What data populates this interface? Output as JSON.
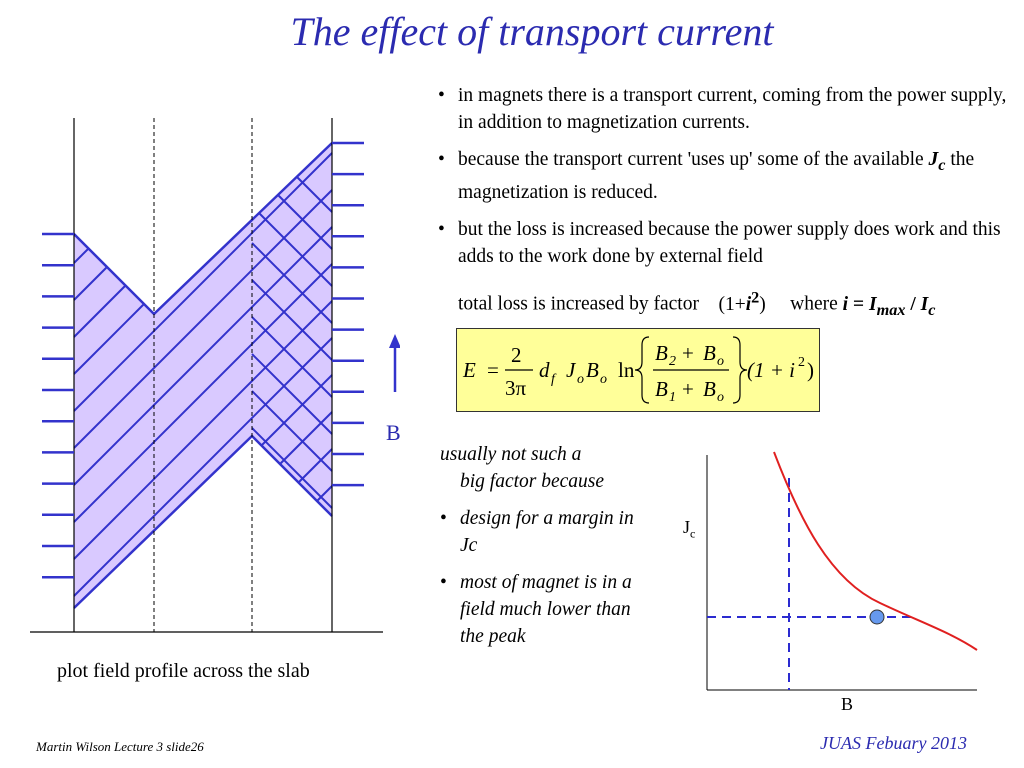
{
  "title": "The effect of transport current",
  "bullets": [
    "in magnets there is a transport current, coming from the power supply, in addition to magnetization currents.",
    {
      "pre": "because the transport current 'uses up' some of the available ",
      "sym": "J",
      "sub": "c",
      "post": " the magnetization is reduced."
    },
    "but the loss is increased because the power supply does work and this adds to the work done by external field"
  ],
  "loss_factor": {
    "text": "total loss is increased by factor",
    "factor_pre": "(1+",
    "factor_var": "i",
    "factor_exp": "2",
    "factor_post": ")",
    "where": "where",
    "def_i": "i",
    "def_eq": " = ",
    "def_imax": "I",
    "def_imax_sub": "max",
    "def_slash": " / ",
    "def_ic": "I",
    "def_ic_sub": "c"
  },
  "formula": {
    "lhs": "E",
    "eq": "=",
    "frac_num": "2",
    "frac_den": "3π",
    "df": "d",
    "df_sub": "f",
    "j": "J",
    "j_sub": "o",
    "b": "B",
    "b_sub": "o",
    "ln": "ln",
    "num_b2": "B",
    "num_b2_sub": "2",
    "num_plus": "+",
    "num_bo": "B",
    "num_bo_sub": "o",
    "den_b1": "B",
    "den_b1_sub": "1",
    "den_plus": "+",
    "den_bo": "B",
    "den_bo_sub": "o",
    "tail": "(1 + i",
    "tail_exp": "2",
    "tail_close": ")"
  },
  "notes": {
    "head": [
      "usually not such a",
      "big factor because"
    ],
    "items": [
      "design for a margin in Jc",
      "most of magnet is in a field much lower than the peak"
    ]
  },
  "left_diagram": {
    "b_label": "B",
    "caption": "plot field profile across the slab",
    "fill_color": "#d9c9ff",
    "line_color": "#3333cc"
  },
  "right_graph": {
    "y_label": "J",
    "y_label_sub": "c",
    "x_label": "B",
    "curve_color": "#e02020",
    "guide_color": "#2b2bd0",
    "point_color": "#6699ee"
  },
  "footer": {
    "left": "Martin Wilson Lecture 3 slide26",
    "right": "JUAS Febuary 2013"
  }
}
